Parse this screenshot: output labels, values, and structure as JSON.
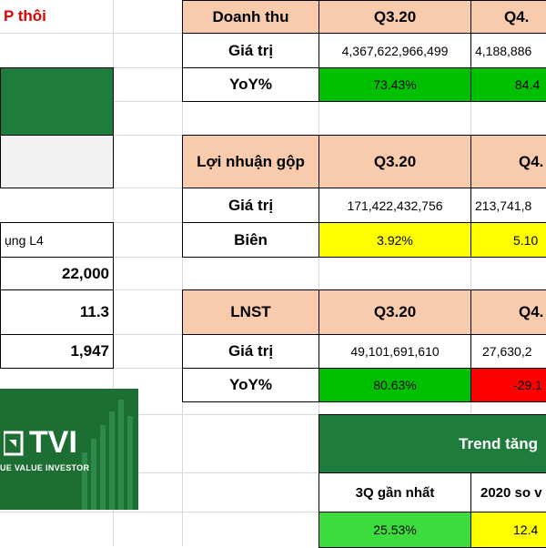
{
  "left": {
    "title": "P thôi",
    "sector_label": "ụng L4",
    "price": "22,000",
    "ratio": "11.3",
    "eps": "1,947"
  },
  "logo": {
    "brand": "TVI",
    "tagline": "UE VALUE INVESTOR"
  },
  "revenue": {
    "header": "Doanh thu",
    "q1": "Q3.20",
    "q2": "Q4.",
    "row1_label": "Giá trị",
    "row1_v1": "4,367,622,966,499",
    "row1_v2": "4,188,886",
    "row2_label": "YoY%",
    "row2_v1": "73.43%",
    "row2_v2": "84.4"
  },
  "gross": {
    "header": "Lợi nhuận gộp",
    "q1": "Q3.20",
    "q2": "Q4.",
    "row1_label": "Giá trị",
    "row1_v1": "171,422,432,756",
    "row1_v2": "213,741,8",
    "row2_label": "Biên",
    "row2_v1": "3.92%",
    "row2_v2": "5.10"
  },
  "net": {
    "header": "LNST",
    "q1": "Q3.20",
    "q2": "Q4.",
    "row1_label": "Giá trị",
    "row1_v1": "49,101,691,610",
    "row1_v2": "27,630,2",
    "row2_label": "YoY%",
    "row2_v1": "80.63%",
    "row2_v2": "-29.1"
  },
  "trend": {
    "header": "Trend tăng",
    "col1": "3Q gần nhất",
    "col2": "2020 so v",
    "v1": "25.53%",
    "v2": "12.4"
  }
}
